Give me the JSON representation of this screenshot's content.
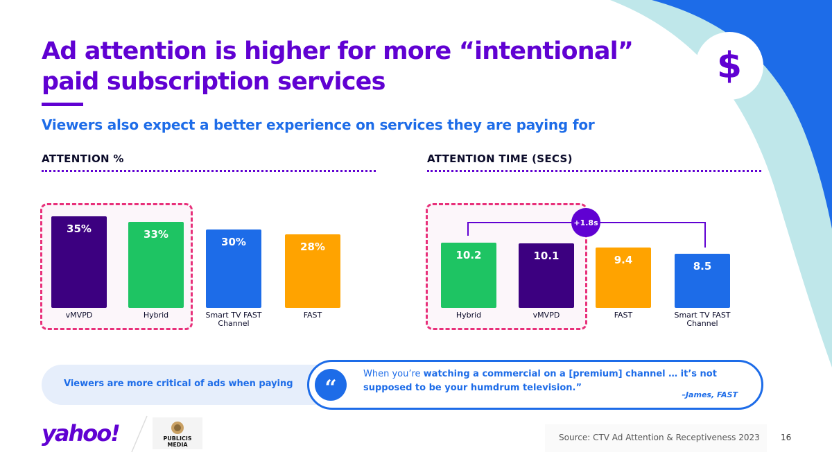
{
  "title": "Ad attention is higher for more “intentional” paid subscription services",
  "subtitle": "Viewers also expect a better experience on services they are paying for",
  "icon": "dollar-icon",
  "icon_glyph": "$",
  "colors": {
    "purple": "#6001d2",
    "dark_purple": "#3c0080",
    "green": "#1ec463",
    "blue": "#1d6ce8",
    "orange": "#ffa300",
    "pink": "#e8307a"
  },
  "chart_data": [
    {
      "type": "bar",
      "title": "ATTENTION %",
      "categories": [
        "vMVPD",
        "Hybrid",
        "Smart TV FAST Channel",
        "FAST"
      ],
      "values": [
        35,
        33,
        30,
        28
      ],
      "value_labels": [
        "35%",
        "33%",
        "30%",
        "28%"
      ],
      "bar_colors": [
        "#3c0080",
        "#1ec463",
        "#1d6ce8",
        "#ffa300"
      ],
      "ylim": [
        0,
        35
      ],
      "highlight_categories": [
        "vMVPD",
        "Hybrid"
      ]
    },
    {
      "type": "bar",
      "title": "ATTENTION TIME (SECS)",
      "categories": [
        "Hybrid",
        "vMVPD",
        "FAST",
        "Smart TV FAST Channel"
      ],
      "values": [
        10.2,
        10.1,
        9.4,
        8.5
      ],
      "value_labels": [
        "10.2",
        "10.1",
        "9.4",
        "8.5"
      ],
      "bar_colors": [
        "#1ec463",
        "#3c0080",
        "#ffa300",
        "#1d6ce8"
      ],
      "ylim": [
        0,
        11.3
      ],
      "highlight_categories": [
        "Hybrid",
        "vMVPD"
      ],
      "annotation": "+1.8s"
    }
  ],
  "callout": {
    "label": "Viewers are more critical of ads when paying",
    "quote_icon": "“",
    "quote_prefix": "When you’re ",
    "quote_bold": "watching a commercial on a [premium] channel … it’s not supposed to be your humdrum television.”",
    "author": "–James, FAST"
  },
  "footer": {
    "logo_yahoo": "yahoo!",
    "logo_publicis_line1": "PUBLICIS",
    "logo_publicis_line2": "MEDIA",
    "source": "Source: CTV Ad Attention & Receptiveness 2023",
    "page_number": "16"
  }
}
